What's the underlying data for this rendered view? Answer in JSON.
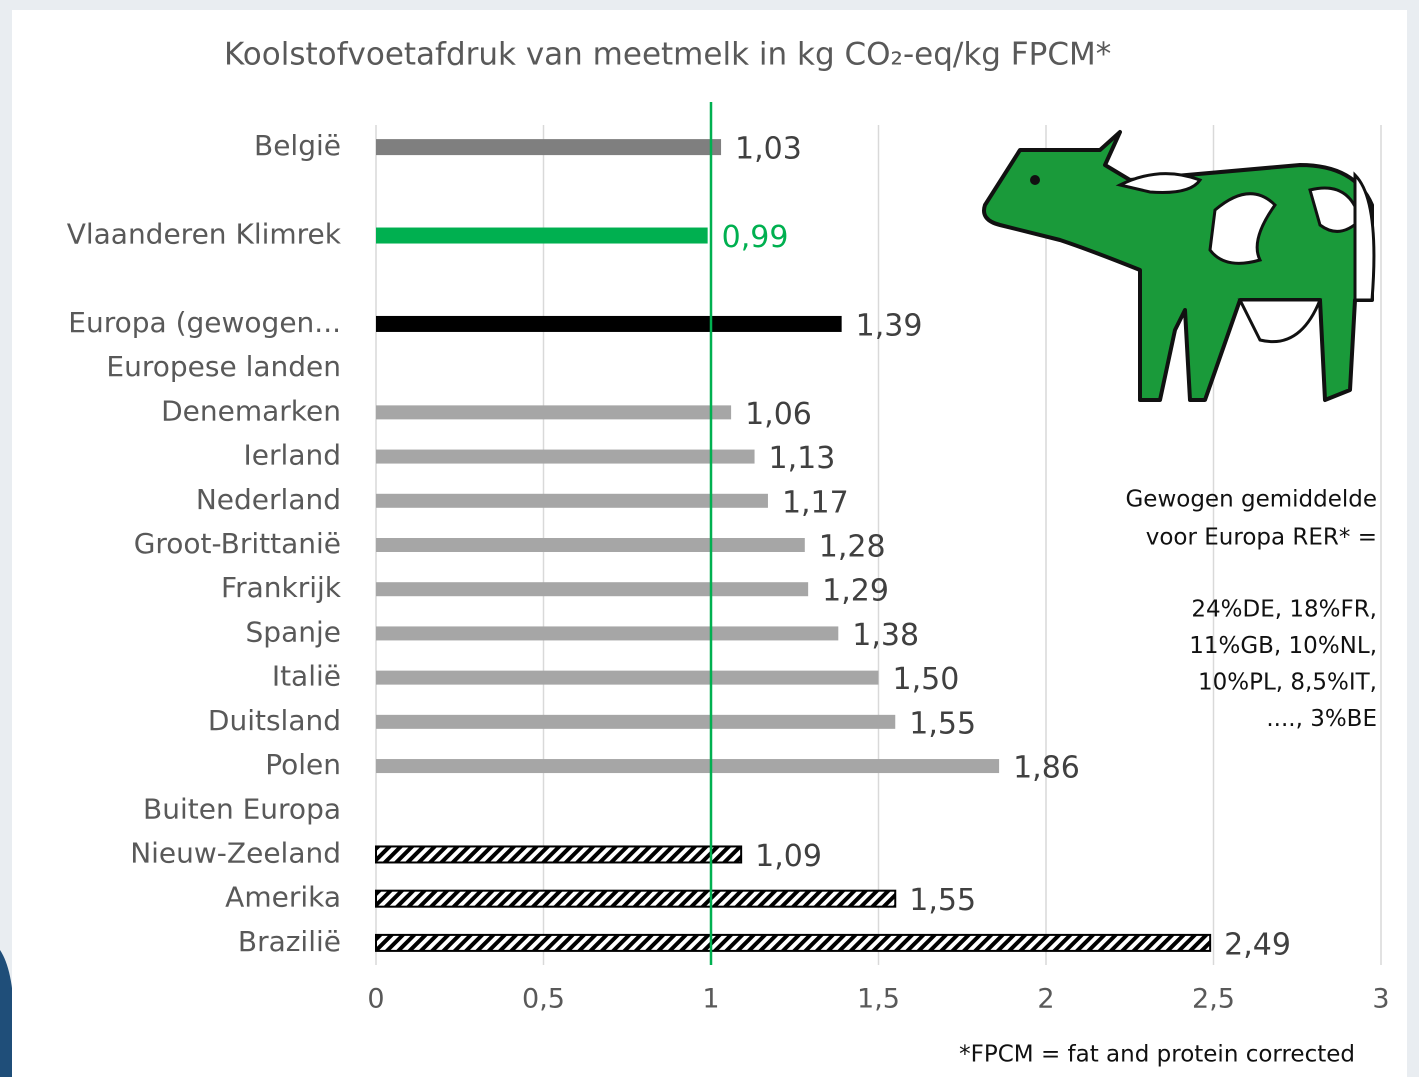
{
  "chart_data": {
    "type": "bar",
    "orientation": "horizontal",
    "title": "Koolstofvoetafdruk van meetmelk in kg CO₂-eq/kg FPCM*",
    "categories": [
      "België",
      null,
      "Vlaanderen Klimrek",
      null,
      "Europa (gewogen...",
      "Europese landen",
      "Denemarken",
      "Ierland",
      "Nederland",
      "Groot-Brittanië",
      "Frankrijk",
      "Spanje",
      "Italië",
      "Duitsland",
      "Polen",
      "Buiten Europa",
      "Nieuw-Zeeland",
      "Amerika",
      "Brazilië"
    ],
    "values": [
      1.03,
      null,
      0.99,
      null,
      1.39,
      null,
      1.06,
      1.13,
      1.17,
      1.28,
      1.29,
      1.38,
      1.5,
      1.55,
      1.86,
      null,
      1.09,
      1.55,
      2.49
    ],
    "value_labels": [
      "1,03",
      null,
      "0,99",
      null,
      "1,39",
      null,
      "1,06",
      "1,13",
      "1,17",
      "1,28",
      "1,29",
      "1,38",
      "1,50",
      "1,55",
      "1,86",
      null,
      "1,09",
      "1,55",
      "2,49"
    ],
    "colors": [
      "#7f7f7f",
      null,
      "#00b050",
      null,
      "#000000",
      null,
      "#a6a6a6",
      "#a6a6a6",
      "#a6a6a6",
      "#a6a6a6",
      "#a6a6a6",
      "#a6a6a6",
      "#a6a6a6",
      "#a6a6a6",
      "#a6a6a6",
      null,
      "#000000",
      "#000000",
      "#000000"
    ],
    "hatched": [
      false,
      false,
      false,
      false,
      false,
      false,
      false,
      false,
      false,
      false,
      false,
      false,
      false,
      false,
      false,
      false,
      true,
      true,
      true
    ],
    "value_label_colors": [
      "#404040",
      null,
      "#00b050",
      null,
      "#404040",
      null,
      "#404040",
      "#404040",
      "#404040",
      "#404040",
      "#404040",
      "#404040",
      "#404040",
      "#404040",
      "#404040",
      null,
      "#404040",
      "#404040",
      "#404040"
    ],
    "xlim": [
      0,
      3
    ],
    "xticks": [
      0,
      {
        "value": 0.5,
        "label": "0,5"
      },
      1,
      {
        "value": 1.5,
        "label": "1,5"
      },
      2,
      {
        "value": 2.5,
        "label": "2,5"
      },
      3
    ],
    "grid": true,
    "reference_line": {
      "value": 1,
      "color": "#00b050"
    },
    "annotation": [
      "Gewogen gemiddelde",
      "voor Europa RER* =",
      "24%DE, 18%FR,",
      "11%GB, 10%NL,",
      "10%PL, 8,5%IT,",
      "...., 3%BE"
    ],
    "footnote": "*FPCM = fat and protein corrected"
  }
}
